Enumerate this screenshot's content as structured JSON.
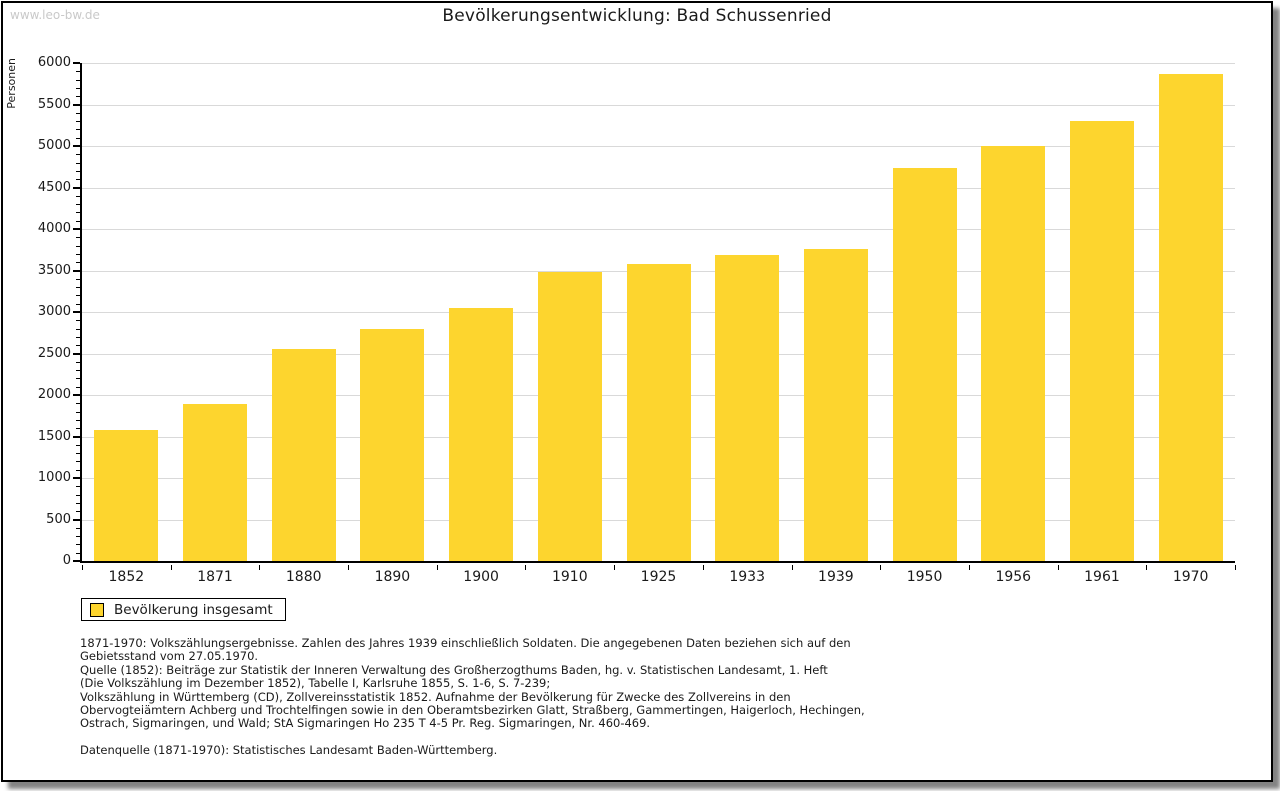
{
  "watermark": "www.leo-bw.de",
  "chart_data": {
    "type": "bar",
    "title": "Bevölkerungsentwicklung: Bad Schussenried",
    "ylabel": "Personen",
    "xlabel": "",
    "categories": [
      "1852",
      "1871",
      "1880",
      "1890",
      "1900",
      "1910",
      "1925",
      "1933",
      "1939",
      "1950",
      "1956",
      "1961",
      "1970"
    ],
    "values": [
      1575,
      1890,
      2560,
      2800,
      3050,
      3480,
      3575,
      3690,
      3760,
      4735,
      5005,
      5305,
      5870
    ],
    "ylim": [
      0,
      6000
    ],
    "y_major_step": 500,
    "y_minor_step": 100,
    "grid": true,
    "bar_color": "#fdd52e",
    "legend_position": "bottom-left",
    "legend": [
      {
        "label": "Bevölkerung insgesamt",
        "color": "#fdd52e"
      }
    ]
  },
  "footnotes": [
    "1871-1970: Volkszählungsergebnisse. Zahlen des Jahres 1939 einschließlich Soldaten. Die angegebenen Daten beziehen sich auf den",
    "Gebietsstand vom 27.05.1970.",
    "Quelle (1852): Beiträge zur Statistik der Inneren Verwaltung des Großherzogthums Baden, hg. v. Statistischen Landesamt, 1. Heft",
    "(Die Volkszählung im Dezember 1852), Tabelle I, Karlsruhe 1855, S. 1-6, S. 7-239;",
    "Volkszählung in Württemberg (CD), Zollvereinsstatistik 1852. Aufnahme der Bevölkerung für Zwecke des Zollvereins in den",
    "Obervogteiämtern Achberg und Trochtelfingen sowie in den Oberamtsbezirken Glatt, Straßberg, Gammertingen, Haigerloch, Hechingen,",
    "Ostrach, Sigmaringen, und Wald; StA Sigmaringen Ho 235 T 4-5 Pr. Reg. Sigmaringen, Nr. 460-469."
  ],
  "source_note": "Datenquelle (1871-1970): Statistisches Landesamt Baden-Württemberg."
}
